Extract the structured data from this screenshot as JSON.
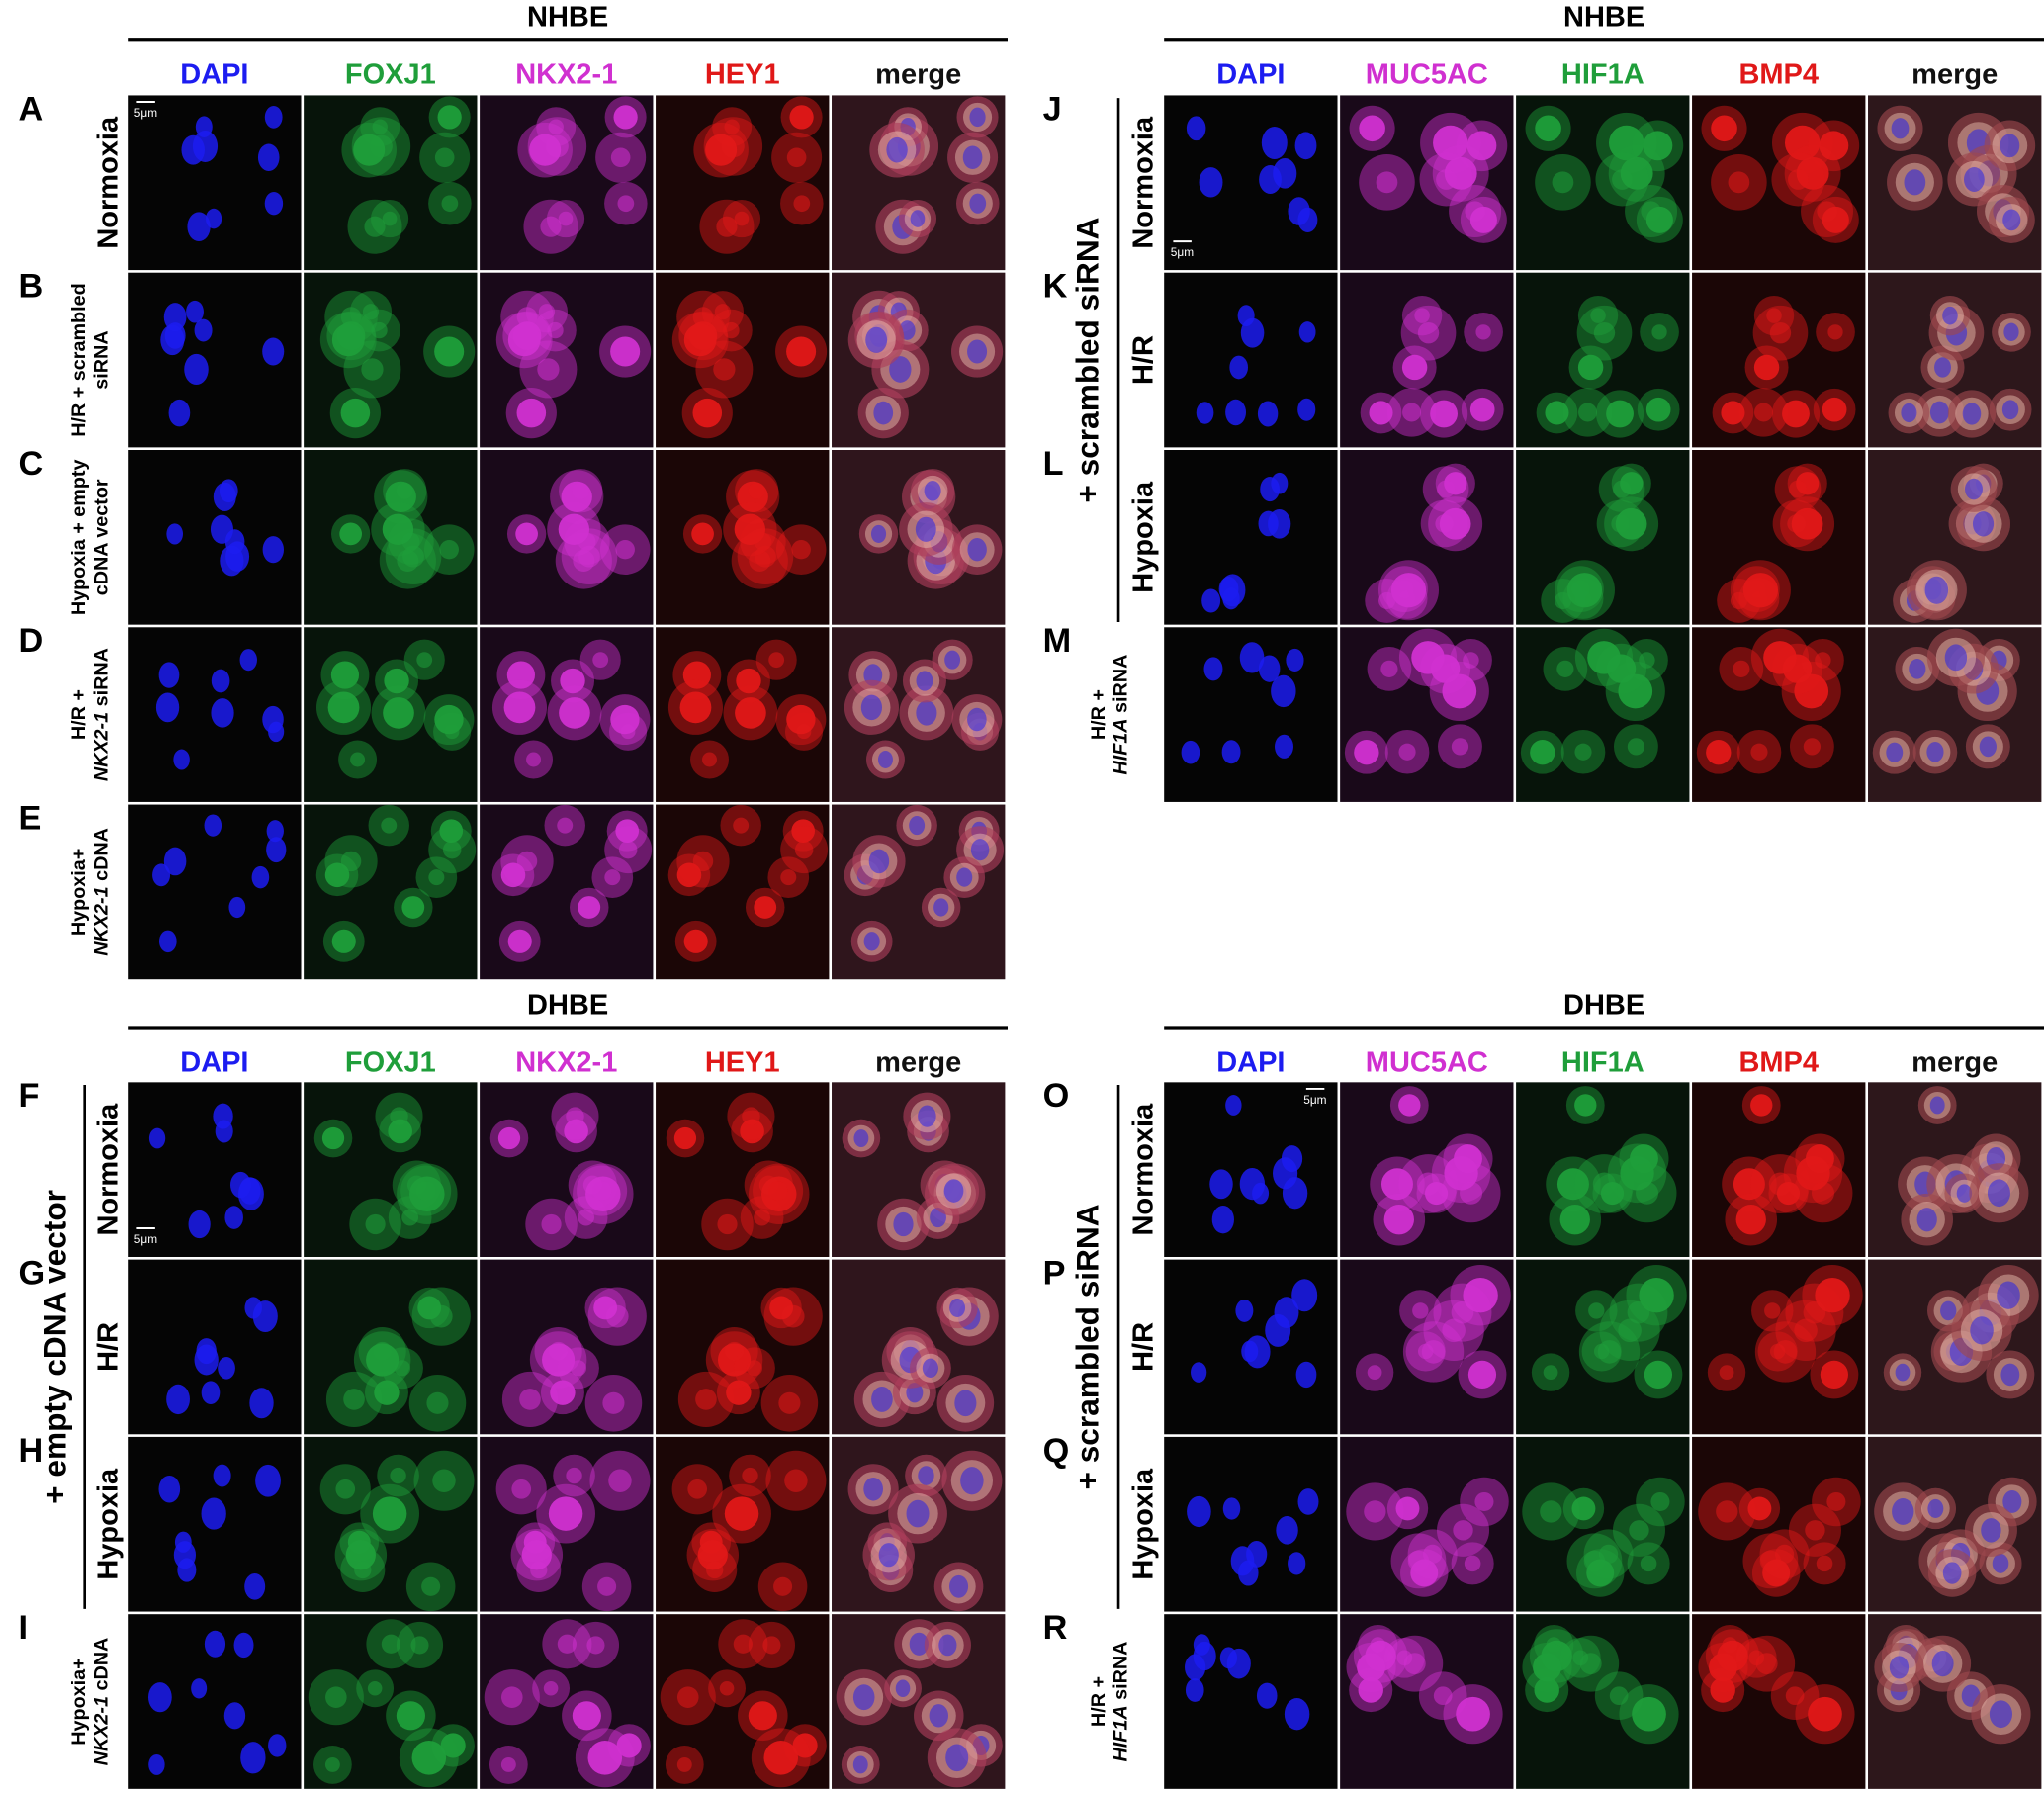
{
  "blocks": [
    {
      "title": "NHBE",
      "columns": [
        {
          "label": "DAPI",
          "color": "#1c1cf0"
        },
        {
          "label": "FOXJ1",
          "color": "#1f9e3a"
        },
        {
          "label": "NKX2-1",
          "color": "#d030d0"
        },
        {
          "label": "HEY1",
          "color": "#e01818"
        },
        {
          "label": "merge",
          "color": "#111111"
        }
      ],
      "rows": [
        {
          "letter": "A",
          "lines": [
            [
              {
                "text": "Normoxia",
                "italic": false
              }
            ]
          ],
          "scale_bar": {
            "text": "5μm",
            "corner": "top-left"
          }
        },
        {
          "letter": "B",
          "lines": [
            [
              {
                "text": "H/R + scrambled",
                "italic": false
              }
            ],
            [
              {
                "text": "siRNA",
                "italic": false
              }
            ]
          ]
        },
        {
          "letter": "C",
          "lines": [
            [
              {
                "text": "Hypoxia + empty",
                "italic": false
              }
            ],
            [
              {
                "text": "cDNA vector",
                "italic": false
              }
            ]
          ]
        },
        {
          "letter": "D",
          "lines": [
            [
              {
                "text": "H/R +",
                "italic": false
              }
            ],
            [
              {
                "text": "NKX2-1",
                "italic": true
              },
              {
                "text": " siRNA",
                "italic": false
              }
            ]
          ]
        },
        {
          "letter": "E",
          "lines": [
            [
              {
                "text": "Hypoxia+",
                "italic": false
              }
            ],
            [
              {
                "text": "NKX2-1",
                "italic": true
              },
              {
                "text": " cDNA",
                "italic": false
              }
            ]
          ]
        }
      ]
    },
    {
      "title": "NHBE",
      "columns": [
        {
          "label": "DAPI",
          "color": "#1c1cf0"
        },
        {
          "label": "MUC5AC",
          "color": "#d030d0"
        },
        {
          "label": "HIF1A",
          "color": "#1f9e3a"
        },
        {
          "label": "BMP4",
          "color": "#e01818"
        },
        {
          "label": "merge",
          "color": "#111111"
        }
      ],
      "group": {
        "label": "+ scrambled siRNA",
        "rows": [
          {
            "letter": "J",
            "lines": [
              [
                {
                  "text": "Normoxia",
                  "italic": false
                }
              ]
            ],
            "scale_bar": {
              "text": "5μm",
              "corner": "bottom-left"
            }
          },
          {
            "letter": "K",
            "lines": [
              [
                {
                  "text": "H/R",
                  "italic": false
                }
              ]
            ]
          },
          {
            "letter": "L",
            "lines": [
              [
                {
                  "text": "Hypoxia",
                  "italic": false
                }
              ]
            ]
          }
        ]
      },
      "rows": [
        {
          "letter": "M",
          "lines": [
            [
              {
                "text": "H/R +",
                "italic": false
              }
            ],
            [
              {
                "text": "HIF1A",
                "italic": true
              },
              {
                "text": " siRNA",
                "italic": false
              }
            ]
          ]
        }
      ]
    },
    {
      "title": "DHBE",
      "columns": [
        {
          "label": "DAPI",
          "color": "#1c1cf0"
        },
        {
          "label": "FOXJ1",
          "color": "#1f9e3a"
        },
        {
          "label": "NKX2-1",
          "color": "#d030d0"
        },
        {
          "label": "HEY1",
          "color": "#e01818"
        },
        {
          "label": "merge",
          "color": "#111111"
        }
      ],
      "group": {
        "label": "+ empty cDNA vector",
        "rows": [
          {
            "letter": "F",
            "lines": [
              [
                {
                  "text": "Normoxia",
                  "italic": false
                }
              ]
            ],
            "scale_bar": {
              "text": "5μm",
              "corner": "bottom-left"
            }
          },
          {
            "letter": "G",
            "lines": [
              [
                {
                  "text": "H/R",
                  "italic": false
                }
              ]
            ]
          },
          {
            "letter": "H",
            "lines": [
              [
                {
                  "text": "Hypoxia",
                  "italic": false
                }
              ]
            ]
          }
        ]
      },
      "rows": [
        {
          "letter": "I",
          "lines": [
            [
              {
                "text": "Hypoxia+",
                "italic": false
              }
            ],
            [
              {
                "text": "NKX2-1",
                "italic": true
              },
              {
                "text": " cDNA",
                "italic": false
              }
            ]
          ]
        }
      ]
    },
    {
      "title": "DHBE",
      "columns": [
        {
          "label": "DAPI",
          "color": "#1c1cf0"
        },
        {
          "label": "MUC5AC",
          "color": "#d030d0"
        },
        {
          "label": "HIF1A",
          "color": "#1f9e3a"
        },
        {
          "label": "BMP4",
          "color": "#e01818"
        },
        {
          "label": "merge",
          "color": "#111111"
        }
      ],
      "group": {
        "label": "+ scrambled siRNA",
        "rows": [
          {
            "letter": "O",
            "lines": [
              [
                {
                  "text": "Normoxia",
                  "italic": false
                }
              ]
            ],
            "scale_bar": {
              "text": "5μm",
              "corner": "top-right"
            }
          },
          {
            "letter": "P",
            "lines": [
              [
                {
                  "text": "H/R",
                  "italic": false
                }
              ]
            ]
          },
          {
            "letter": "Q",
            "lines": [
              [
                {
                  "text": "Hypoxia",
                  "italic": false
                }
              ]
            ]
          }
        ]
      },
      "rows": [
        {
          "letter": "R",
          "lines": [
            [
              {
                "text": "H/R +",
                "italic": false
              }
            ],
            [
              {
                "text": "HIF1A",
                "italic": true
              },
              {
                "text": " siRNA",
                "italic": false
              }
            ]
          ]
        }
      ]
    }
  ]
}
